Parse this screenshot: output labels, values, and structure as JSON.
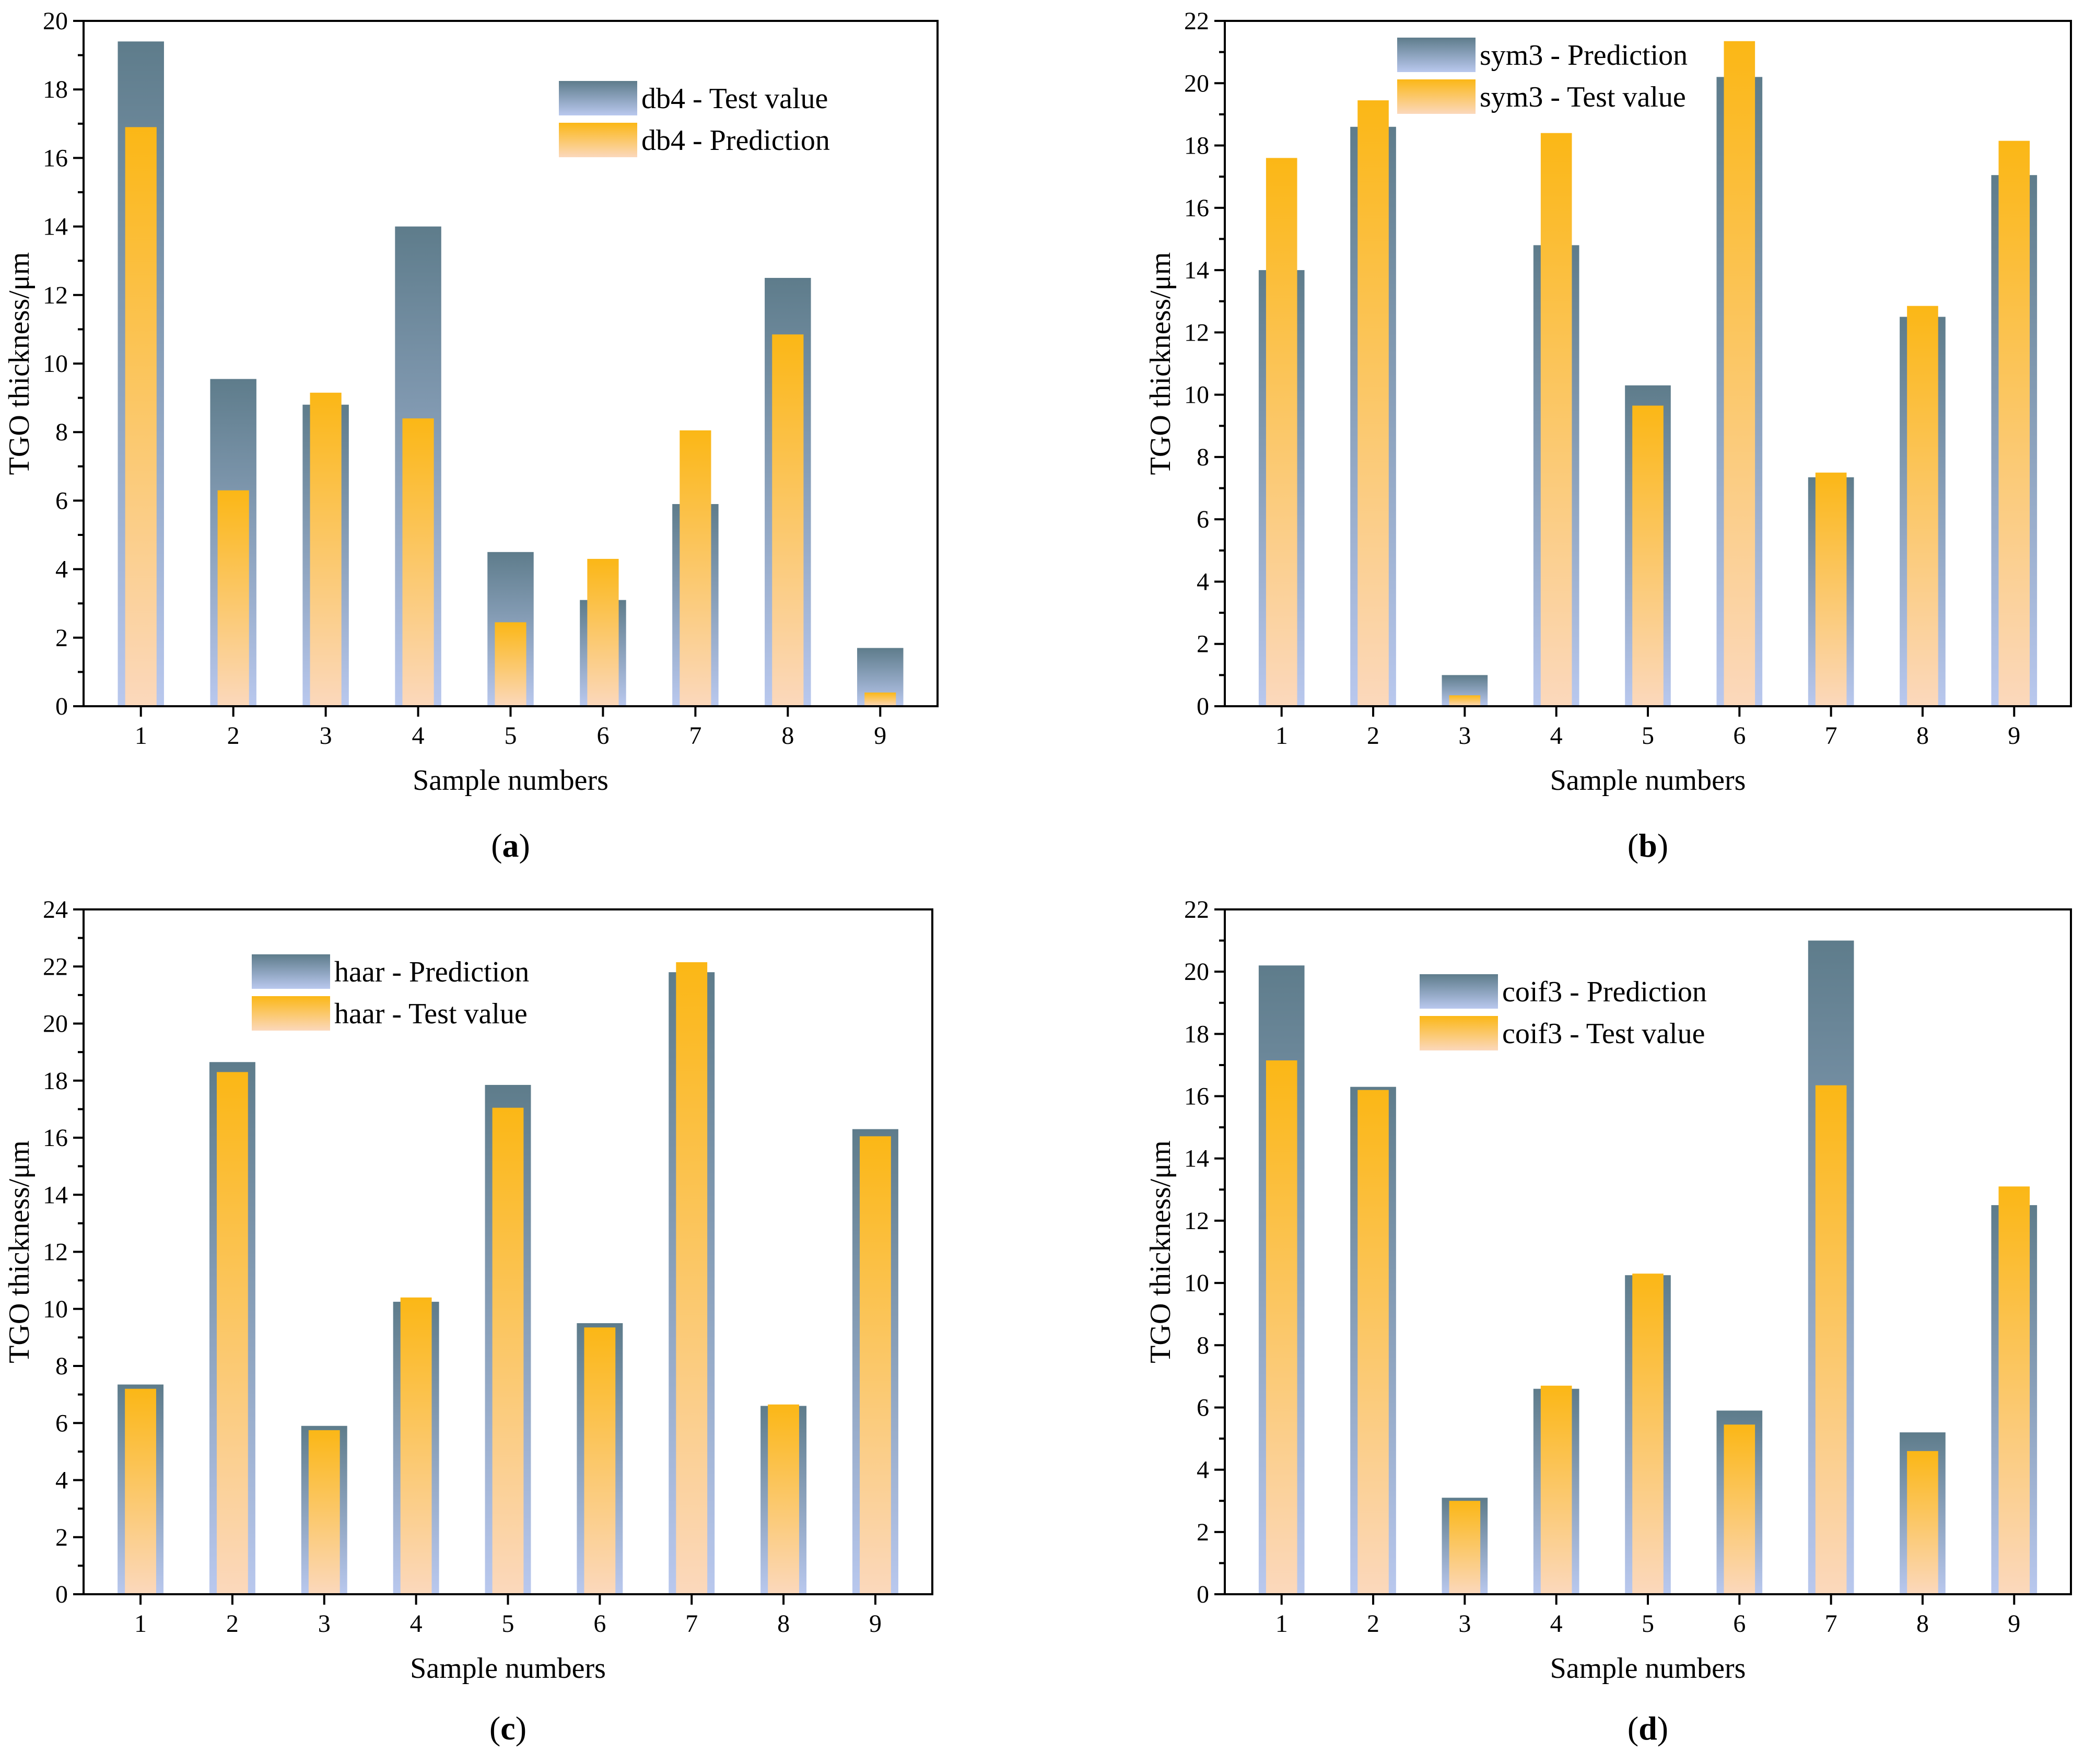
{
  "colors": {
    "dark_top": "#5e7c8b",
    "dark_bottom": "#b9c8ee",
    "light_top": "#fbb716",
    "light_bottom": "#fbd8bc",
    "axis": "#000000",
    "background": "#ffffff"
  },
  "chart_data": [
    {
      "panel": "a",
      "type": "bar",
      "xlabel": "Sample numbers",
      "ylabel": "TGO thickness/μm",
      "categories": [
        "1",
        "2",
        "3",
        "4",
        "5",
        "6",
        "7",
        "8",
        "9"
      ],
      "ylim": [
        0,
        20
      ],
      "yticks": [
        "0",
        "2",
        "4",
        "6",
        "8",
        "10",
        "12",
        "14",
        "16",
        "18",
        "20"
      ],
      "legend_position": "top-right",
      "series": [
        {
          "name": "db4 - Test value",
          "style": "dark",
          "values": [
            19.4,
            9.55,
            8.8,
            14.0,
            4.5,
            3.1,
            5.9,
            12.5,
            1.7
          ]
        },
        {
          "name": "db4 - Prediction",
          "style": "light",
          "values": [
            16.9,
            6.3,
            9.15,
            8.4,
            2.45,
            4.3,
            8.05,
            10.85,
            0.4
          ]
        }
      ]
    },
    {
      "panel": "b",
      "type": "bar",
      "xlabel": "Sample numbers",
      "ylabel": "TGO thickness/μm",
      "categories": [
        "1",
        "2",
        "3",
        "4",
        "5",
        "6",
        "7",
        "8",
        "9"
      ],
      "ylim": [
        0,
        22
      ],
      "yticks": [
        "0",
        "2",
        "4",
        "6",
        "8",
        "10",
        "12",
        "14",
        "16",
        "18",
        "20",
        "22"
      ],
      "legend_position": "top-center",
      "series": [
        {
          "name": "sym3 - Prediction",
          "style": "dark",
          "values": [
            14.0,
            18.6,
            1.0,
            14.8,
            10.3,
            20.2,
            7.35,
            12.5,
            17.05
          ]
        },
        {
          "name": "sym3 - Test value",
          "style": "light",
          "values": [
            17.6,
            19.45,
            0.35,
            18.4,
            9.65,
            21.35,
            7.5,
            12.85,
            18.15
          ]
        }
      ]
    },
    {
      "panel": "c",
      "type": "bar",
      "xlabel": "Sample numbers",
      "ylabel": "TGO thickness/μm",
      "categories": [
        "1",
        "2",
        "3",
        "4",
        "5",
        "6",
        "7",
        "8",
        "9"
      ],
      "ylim": [
        0,
        24
      ],
      "yticks": [
        "0",
        "2",
        "4",
        "6",
        "8",
        "10",
        "12",
        "14",
        "16",
        "18",
        "20",
        "22",
        "24"
      ],
      "legend_position": "top-left",
      "series": [
        {
          "name": "haar - Prediction",
          "style": "dark",
          "values": [
            7.35,
            18.65,
            5.9,
            10.25,
            17.85,
            9.5,
            21.8,
            6.6,
            16.3
          ]
        },
        {
          "name": "haar - Test value",
          "style": "light",
          "values": [
            7.2,
            18.3,
            5.75,
            10.4,
            17.05,
            9.35,
            22.15,
            6.65,
            16.05
          ]
        }
      ]
    },
    {
      "panel": "d",
      "type": "bar",
      "xlabel": "Sample numbers",
      "ylabel": "TGO thickness/μm",
      "categories": [
        "1",
        "2",
        "3",
        "4",
        "5",
        "6",
        "7",
        "8",
        "9"
      ],
      "ylim": [
        0,
        22
      ],
      "yticks": [
        "0",
        "2",
        "4",
        "6",
        "8",
        "10",
        "12",
        "14",
        "16",
        "18",
        "20",
        "22"
      ],
      "legend_position": "top-center",
      "series": [
        {
          "name": "coif3 - Prediction",
          "style": "dark",
          "values": [
            20.2,
            16.3,
            3.1,
            6.6,
            10.25,
            5.9,
            21.0,
            5.2,
            12.5
          ]
        },
        {
          "name": "coif3 - Test value",
          "style": "light",
          "values": [
            17.15,
            16.2,
            3.0,
            6.7,
            10.3,
            5.45,
            16.35,
            4.6,
            13.1
          ]
        }
      ]
    }
  ],
  "panel_labels": [
    {
      "open": "(",
      "letter": "a",
      "close": ")"
    },
    {
      "open": "(",
      "letter": "b",
      "close": ")"
    },
    {
      "open": "(",
      "letter": "c",
      "close": ")"
    },
    {
      "open": "(",
      "letter": "d",
      "close": ")"
    }
  ]
}
